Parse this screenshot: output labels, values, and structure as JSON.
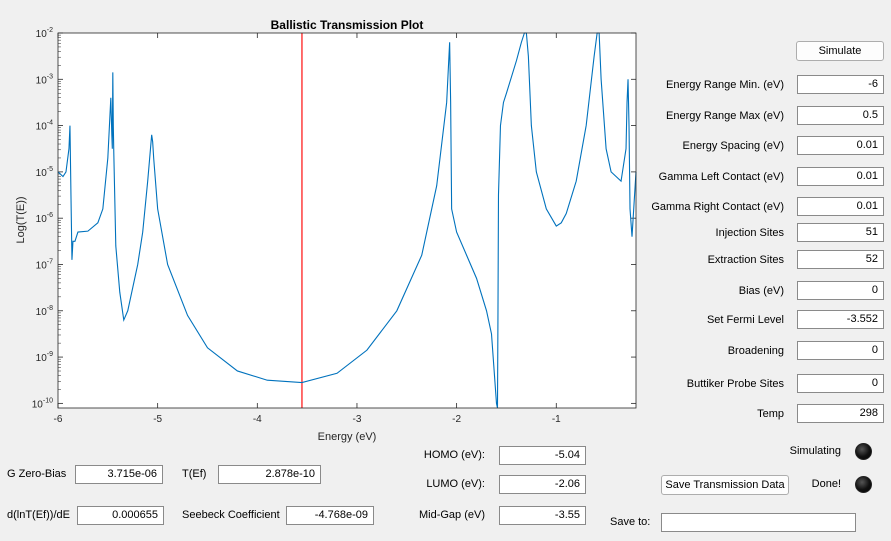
{
  "plot": {
    "title": "Ballistic Transmission Plot",
    "xlabel": "Energy (eV)",
    "ylabel": "Log(T(E))"
  },
  "chart_data": {
    "type": "line",
    "title": "Ballistic Transmission Plot",
    "xlabel": "Energy (eV)",
    "ylabel": "Log(T(E))",
    "xlim": [
      -6,
      -0.2
    ],
    "ylim_exp": [
      -10.1,
      -2
    ],
    "yscale": "log",
    "xticks": [
      -6,
      -5,
      -4,
      -3,
      -2,
      -1
    ],
    "yticks_exp": [
      -2,
      -3,
      -4,
      -5,
      -6,
      -7,
      -8,
      -9,
      -10
    ],
    "fermi_level": -3.552,
    "series": [
      {
        "color": "#0072bd",
        "x": [
          -6.0,
          -5.95,
          -5.92,
          -5.89,
          -5.88,
          -5.87,
          -5.86,
          -5.85,
          -5.83,
          -5.8,
          -5.7,
          -5.6,
          -5.55,
          -5.5,
          -5.47,
          -5.46,
          -5.455,
          -5.45,
          -5.445,
          -5.44,
          -5.42,
          -5.38,
          -5.34,
          -5.3,
          -5.25,
          -5.2,
          -5.15,
          -5.1,
          -5.06,
          -5.05,
          -5.04,
          -5.0,
          -4.9,
          -4.7,
          -4.5,
          -4.2,
          -3.9,
          -3.552,
          -3.2,
          -2.9,
          -2.6,
          -2.35,
          -2.2,
          -2.1,
          -2.07,
          -2.06,
          -2.05,
          -2.0,
          -1.9,
          -1.8,
          -1.7,
          -1.65,
          -1.6,
          -1.59,
          -1.585,
          -1.58,
          -1.56,
          -1.53,
          -1.5,
          -1.45,
          -1.4,
          -1.35,
          -1.32,
          -1.3,
          -1.28,
          -1.25,
          -1.2,
          -1.1,
          -1.0,
          -0.95,
          -0.9,
          -0.8,
          -0.7,
          -0.62,
          -0.59,
          -0.57,
          -0.55,
          -0.5,
          -0.45,
          -0.4,
          -0.35,
          -0.3,
          -0.29,
          -0.28,
          -0.27,
          -0.26,
          -0.24,
          -0.2
        ],
        "y_exp": [
          -5.0,
          -5.1,
          -5.0,
          -4.5,
          -4.0,
          -5.5,
          -6.9,
          -6.5,
          -6.5,
          -6.3,
          -6.28,
          -6.1,
          -5.8,
          -4.7,
          -3.4,
          -4.2,
          -4.5,
          -2.85,
          -4.0,
          -4.6,
          -6.6,
          -7.6,
          -8.2,
          -8.0,
          -7.5,
          -7.0,
          -6.3,
          -5.2,
          -4.2,
          -4.35,
          -4.7,
          -5.8,
          -7.0,
          -8.1,
          -8.8,
          -9.3,
          -9.5,
          -9.55,
          -9.35,
          -8.85,
          -8.0,
          -6.8,
          -5.3,
          -3.5,
          -2.2,
          -3.5,
          -5.8,
          -6.3,
          -6.8,
          -7.3,
          -8.0,
          -8.5,
          -10.0,
          -10.8,
          -8.0,
          -5.5,
          -4.0,
          -3.5,
          -3.3,
          -2.95,
          -2.6,
          -2.2,
          -1.6,
          -1.5,
          -2.5,
          -4.0,
          -5.0,
          -5.8,
          -6.17,
          -6.1,
          -5.9,
          -5.2,
          -4.0,
          -2.5,
          -1.6,
          -2.0,
          -3.0,
          -4.5,
          -5.0,
          -5.1,
          -5.2,
          -4.5,
          -3.5,
          -3.0,
          -4.0,
          -5.8,
          -6.4,
          -5.0
        ]
      }
    ]
  },
  "controls": {
    "simulate_label": "Simulate",
    "params": [
      {
        "label": "Energy Range Min. (eV)",
        "value": "-6"
      },
      {
        "label": "Energy Range Max (eV)",
        "value": "0.5"
      },
      {
        "label": "Energy Spacing (eV)",
        "value": "0.01"
      },
      {
        "label": "Gamma Left Contact (eV)",
        "value": "0.01"
      },
      {
        "label": "Gamma Right Contact (eV)",
        "value": "0.01"
      },
      {
        "label": "Injection Sites",
        "value": "51"
      },
      {
        "label": "Extraction Sites",
        "value": "52"
      },
      {
        "label": "Bias (eV)",
        "value": "0"
      },
      {
        "label": "Set Fermi Level",
        "value": "-3.552"
      },
      {
        "label": "Broadening",
        "value": "0"
      },
      {
        "label": "Buttiker Probe Sites",
        "value": "0"
      },
      {
        "label": "Temp",
        "value": "298"
      }
    ]
  },
  "results": {
    "g_zero_bias": {
      "label": "G Zero-Bias",
      "value": "3.715e-06"
    },
    "t_ef": {
      "label": "T(Ef)",
      "value": "2.878e-10"
    },
    "dlnT": {
      "label": "d(lnT(Ef))/dE",
      "value": "0.000655"
    },
    "seebeck": {
      "label": "Seebeck Coefficient",
      "value": "-4.768e-09"
    },
    "homo": {
      "label": "HOMO (eV):",
      "value": "-5.04"
    },
    "lumo": {
      "label": "LUMO (eV):",
      "value": "-2.06"
    },
    "midgap": {
      "label": "Mid-Gap (eV)",
      "value": "-3.55"
    }
  },
  "status": {
    "simulating_label": "Simulating",
    "done_label": "Done!",
    "save_button_label": "Save Transmission Data",
    "save_to_label": "Save to:",
    "save_to_value": ""
  }
}
